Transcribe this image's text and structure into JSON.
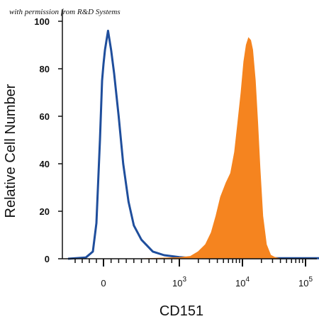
{
  "credit": "with permission from R&D Systems",
  "chart_data": {
    "type": "area",
    "xlabel": "CD151",
    "ylabel": "Relative Cell Number",
    "ylim": [
      0,
      100
    ],
    "y_ticks": [
      "0",
      "20",
      "40",
      "60",
      "80",
      "100"
    ],
    "x_scale": "biexponential",
    "x_ticks": [
      {
        "value": 0,
        "base": "0",
        "exp": ""
      },
      {
        "value": 1000,
        "base": "10",
        "exp": "3"
      },
      {
        "value": 10000,
        "base": "10",
        "exp": "4"
      },
      {
        "value": 100000,
        "base": "10",
        "exp": "5"
      }
    ],
    "grid": false,
    "series": [
      {
        "kind": "outline",
        "color": "#1f4e9c",
        "points": [
          [
            -500,
            0
          ],
          [
            -250,
            0.5
          ],
          [
            -150,
            3
          ],
          [
            -100,
            15
          ],
          [
            -50,
            50
          ],
          [
            -20,
            75
          ],
          [
            0,
            82
          ],
          [
            20,
            88
          ],
          [
            60,
            96
          ],
          [
            100,
            88
          ],
          [
            140,
            78
          ],
          [
            200,
            60
          ],
          [
            260,
            40
          ],
          [
            330,
            24
          ],
          [
            400,
            14
          ],
          [
            500,
            8
          ],
          [
            650,
            3
          ],
          [
            800,
            1.5
          ],
          [
            1000,
            0.7
          ],
          [
            1500,
            0.3
          ],
          [
            3000,
            0.2
          ],
          [
            200000,
            0.2
          ]
        ]
      },
      {
        "kind": "filled",
        "color": "#f5841f",
        "points": [
          [
            -500,
            0
          ],
          [
            500,
            0
          ],
          [
            1000,
            0.5
          ],
          [
            1500,
            1
          ],
          [
            2000,
            3
          ],
          [
            2600,
            6
          ],
          [
            3200,
            11
          ],
          [
            3800,
            18
          ],
          [
            4500,
            26
          ],
          [
            5500,
            32
          ],
          [
            6500,
            36
          ],
          [
            7500,
            45
          ],
          [
            8500,
            58
          ],
          [
            9500,
            70
          ],
          [
            10500,
            83
          ],
          [
            11500,
            90
          ],
          [
            12500,
            93
          ],
          [
            13500,
            92
          ],
          [
            14500,
            88
          ],
          [
            16000,
            75
          ],
          [
            17500,
            57
          ],
          [
            19000,
            38
          ],
          [
            21000,
            18
          ],
          [
            24000,
            6
          ],
          [
            28000,
            1.5
          ],
          [
            33000,
            0.5
          ],
          [
            40000,
            0
          ]
        ]
      }
    ]
  }
}
